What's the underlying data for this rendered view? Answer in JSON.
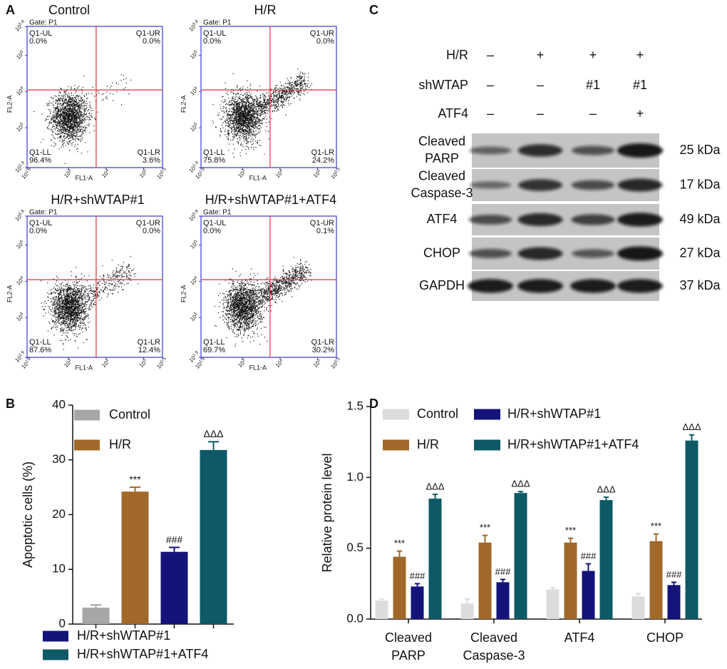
{
  "panel_labels": [
    "A",
    "B",
    "C",
    "D"
  ],
  "flow_panel": {
    "gate": "Gate: P1",
    "x_label": "FL1-A",
    "y_label": "FL2-A",
    "tick_base": "10",
    "x_tick_exponents": [
      "1.9",
      "3",
      "4",
      "5",
      "5.5"
    ],
    "y_tick_exponents": [
      "1.9",
      "3",
      "4",
      "5",
      "5.8"
    ],
    "quadrant_names": [
      "Q1-UL",
      "Q1-UR",
      "Q1-LL",
      "Q1-LR"
    ],
    "plots": [
      {
        "title": "Control",
        "quadrant_values": [
          "0.0%",
          "0.0%",
          "96.4%",
          "3.6%"
        ]
      },
      {
        "title": "H/R",
        "quadrant_values": [
          "0.0%",
          "0.0%",
          "75.8%",
          "24.2%"
        ]
      },
      {
        "title": "H/R+shWTAP#1",
        "quadrant_values": [
          "0.0%",
          "0.0%",
          "87.6%",
          "12.4%"
        ]
      },
      {
        "title": "H/R+shWTAP#1+ATF4",
        "quadrant_values": [
          "0.0%",
          "0.1%",
          "69.7%",
          "30.2%"
        ]
      }
    ]
  },
  "blot_panel": {
    "conditions": [
      {
        "label": "H/R",
        "marks": [
          "–",
          "+",
          "+",
          "+"
        ]
      },
      {
        "label": "shWTAP",
        "marks": [
          "–",
          "–",
          "#1",
          "#1"
        ]
      },
      {
        "label": "ATF4",
        "marks": [
          "–",
          "–",
          "–",
          "+"
        ]
      }
    ],
    "proteins": [
      {
        "label_lines": [
          "Cleaved",
          "PARP"
        ],
        "size": "25 kDa"
      },
      {
        "label_lines": [
          "Cleaved",
          "Caspase-3"
        ],
        "size": "17 kDa"
      },
      {
        "label_lines": [
          "ATF4"
        ],
        "size": "49 kDa"
      },
      {
        "label_lines": [
          "CHOP"
        ],
        "size": "27 kDa"
      },
      {
        "label_lines": [
          "GAPDH"
        ],
        "size": "37 kDa"
      }
    ]
  },
  "chart_data": [
    {
      "type": "bar",
      "y_label": "Apoptotic cells (%)",
      "categories": [
        null
      ],
      "ylim": [
        0,
        40
      ],
      "yticks": [
        0,
        10,
        20,
        30,
        40
      ],
      "series": [
        {
          "name": "Control",
          "color": "#a6a6a6",
          "values": [
            3.0
          ],
          "errors": [
            0.5
          ]
        },
        {
          "name": "H/R",
          "color": "#a0692a",
          "values": [
            24.2
          ],
          "errors": [
            0.8
          ],
          "markers": [
            "***"
          ]
        },
        {
          "name": "H/R+shWTAP#1",
          "color": "#13137a",
          "values": [
            13.2
          ],
          "errors": [
            0.8
          ],
          "markers": [
            "###"
          ]
        },
        {
          "name": "H/R+shWTAP#1+ATF4",
          "color": "#0d5a66",
          "values": [
            31.8
          ],
          "errors": [
            1.5
          ],
          "markers": [
            "ΔΔΔ"
          ]
        }
      ]
    },
    {
      "type": "bar",
      "y_label": "Relative protein level",
      "categories": [
        "Cleaved PARP",
        "Cleaved Caspase-3",
        "ATF4",
        "CHOP"
      ],
      "ylim": [
        0,
        1.5
      ],
      "yticks": [
        {
          "value": 0,
          "label": "0.0"
        },
        0.5,
        {
          "value": 1,
          "label": "1.0"
        },
        1.5
      ],
      "series": [
        {
          "name": "Control",
          "color": "#dcdcdc",
          "values": [
            0.13,
            0.11,
            0.21,
            0.16
          ],
          "errors": [
            0.01,
            0.03,
            0.01,
            0.02
          ]
        },
        {
          "name": "H/R",
          "color": "#a0692a",
          "values": [
            0.44,
            0.54,
            0.54,
            0.55
          ],
          "errors": [
            0.04,
            0.05,
            0.03,
            0.05
          ],
          "markers": [
            "***",
            "***",
            "***",
            "***"
          ]
        },
        {
          "name": "H/R+shWTAP#1",
          "color": "#13137a",
          "values": [
            0.23,
            0.26,
            0.34,
            0.24
          ],
          "errors": [
            0.02,
            0.02,
            0.05,
            0.02
          ],
          "markers": [
            "###",
            "###",
            "###",
            "###"
          ]
        },
        {
          "name": "H/R+shWTAP#1+ATF4",
          "color": "#0d5a66",
          "values": [
            0.85,
            0.89,
            0.84,
            1.26
          ],
          "errors": [
            0.03,
            0.01,
            0.02,
            0.04
          ],
          "markers": [
            "ΔΔΔ",
            "ΔΔΔ",
            "ΔΔΔ",
            "ΔΔΔ"
          ]
        }
      ]
    }
  ]
}
